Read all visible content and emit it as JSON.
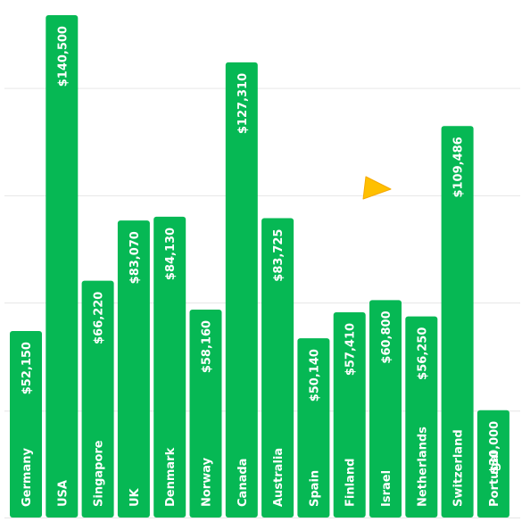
{
  "chart_data": {
    "type": "bar",
    "orientation": "vertical",
    "categories": [
      "Germany",
      "USA",
      "Singapore",
      "UK",
      "Denmark",
      "Norway",
      "Canada",
      "Australia",
      "Spain",
      "Finland",
      "Israel",
      "Netherlands",
      "Switzerland",
      "Portugal"
    ],
    "values": [
      52150,
      140500,
      66220,
      83070,
      84130,
      58160,
      127310,
      83725,
      50140,
      57410,
      60800,
      56250,
      109486,
      30000
    ],
    "value_labels": [
      "$52,150",
      "$140,500",
      "$66,220",
      "$83,070",
      "$84,130",
      "$58,160",
      "$127,310",
      "$83,725",
      "$50,140",
      "$57,410",
      "$60,800",
      "$56,250",
      "$109,486",
      "$30,000"
    ],
    "title": "",
    "xlabel": "",
    "ylabel": "",
    "ylim": [
      0,
      142000
    ],
    "grid": true,
    "legend": "none",
    "colors": {
      "bar": "#06b854",
      "grid": "#e6e6e6",
      "text_inside": "#ffffff",
      "text_outside": "#222222"
    },
    "cursor_icon": "pointer-arrow-icon"
  }
}
